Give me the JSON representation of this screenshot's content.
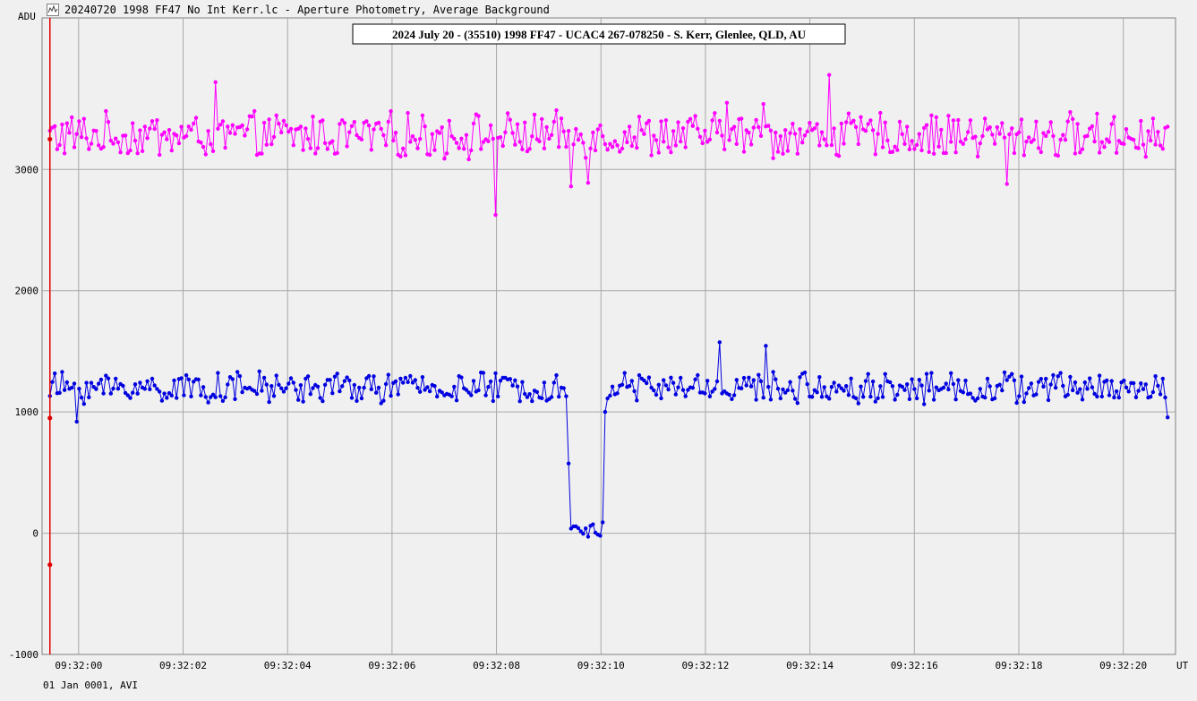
{
  "window": {
    "title": "20240720 1998 FF47 No Int Kerr.lc - Aperture Photometry, Average Background",
    "icon": "lightcurve-icon"
  },
  "footer": {
    "text": "01 Jan 0001, AVI"
  },
  "chart_data": {
    "type": "line",
    "title": "2024 July 20 - (35510) 1998 FF47 - UCAC4 267-078250 - S. Kerr, Glenlee, QLD, AU",
    "xlabel": "UT",
    "ylabel": "ADU",
    "x_unit": "seconds after 09:32:00",
    "xlim": [
      -0.7,
      21.0
    ],
    "ylim": [
      -1000,
      4250
    ],
    "y_ticks": [
      -1000,
      0,
      1000,
      2000,
      3000
    ],
    "x_ticks": [
      {
        "t": 0,
        "label": "09:32:00"
      },
      {
        "t": 2,
        "label": "09:32:02"
      },
      {
        "t": 4,
        "label": "09:32:04"
      },
      {
        "t": 6,
        "label": "09:32:06"
      },
      {
        "t": 8,
        "label": "09:32:08"
      },
      {
        "t": 10,
        "label": "09:32:10"
      },
      {
        "t": 12,
        "label": "09:32:12"
      },
      {
        "t": 14,
        "label": "09:32:14"
      },
      {
        "t": 16,
        "label": "09:32:16"
      },
      {
        "t": 18,
        "label": "09:32:18"
      },
      {
        "t": 20,
        "label": "09:32:20"
      }
    ],
    "grid": true,
    "cursor": {
      "t": -0.55,
      "color": "#e00000"
    },
    "series": [
      {
        "color": "#ff00ff",
        "baseline": 3280,
        "noise": 160,
        "features": [
          {
            "t": 8.0,
            "value": 2625
          },
          {
            "t": 2.6,
            "value": 3720
          },
          {
            "t": 14.35,
            "value": 3780
          },
          {
            "t": 12.4,
            "value": 3550
          },
          {
            "t": 13.1,
            "value": 3540
          },
          {
            "t": 17.75,
            "value": 2880
          },
          {
            "t": 9.45,
            "value": 2860
          },
          {
            "t": 9.75,
            "value": 2890
          }
        ]
      },
      {
        "color": "#0000e0",
        "baseline": 1200,
        "noise": 110,
        "event_start": 9.37,
        "event_end": 10.1,
        "event_value": 20,
        "features": [
          {
            "t": 9.37,
            "value": 575
          },
          {
            "t": 10.05,
            "value": 90
          },
          {
            "t": 10.1,
            "value": 1000
          },
          {
            "t": 12.25,
            "value": 1575
          },
          {
            "t": 13.15,
            "value": 1545
          },
          {
            "t": -0.05,
            "value": 920
          },
          {
            "t": 20.95,
            "value": 955
          }
        ]
      }
    ]
  }
}
